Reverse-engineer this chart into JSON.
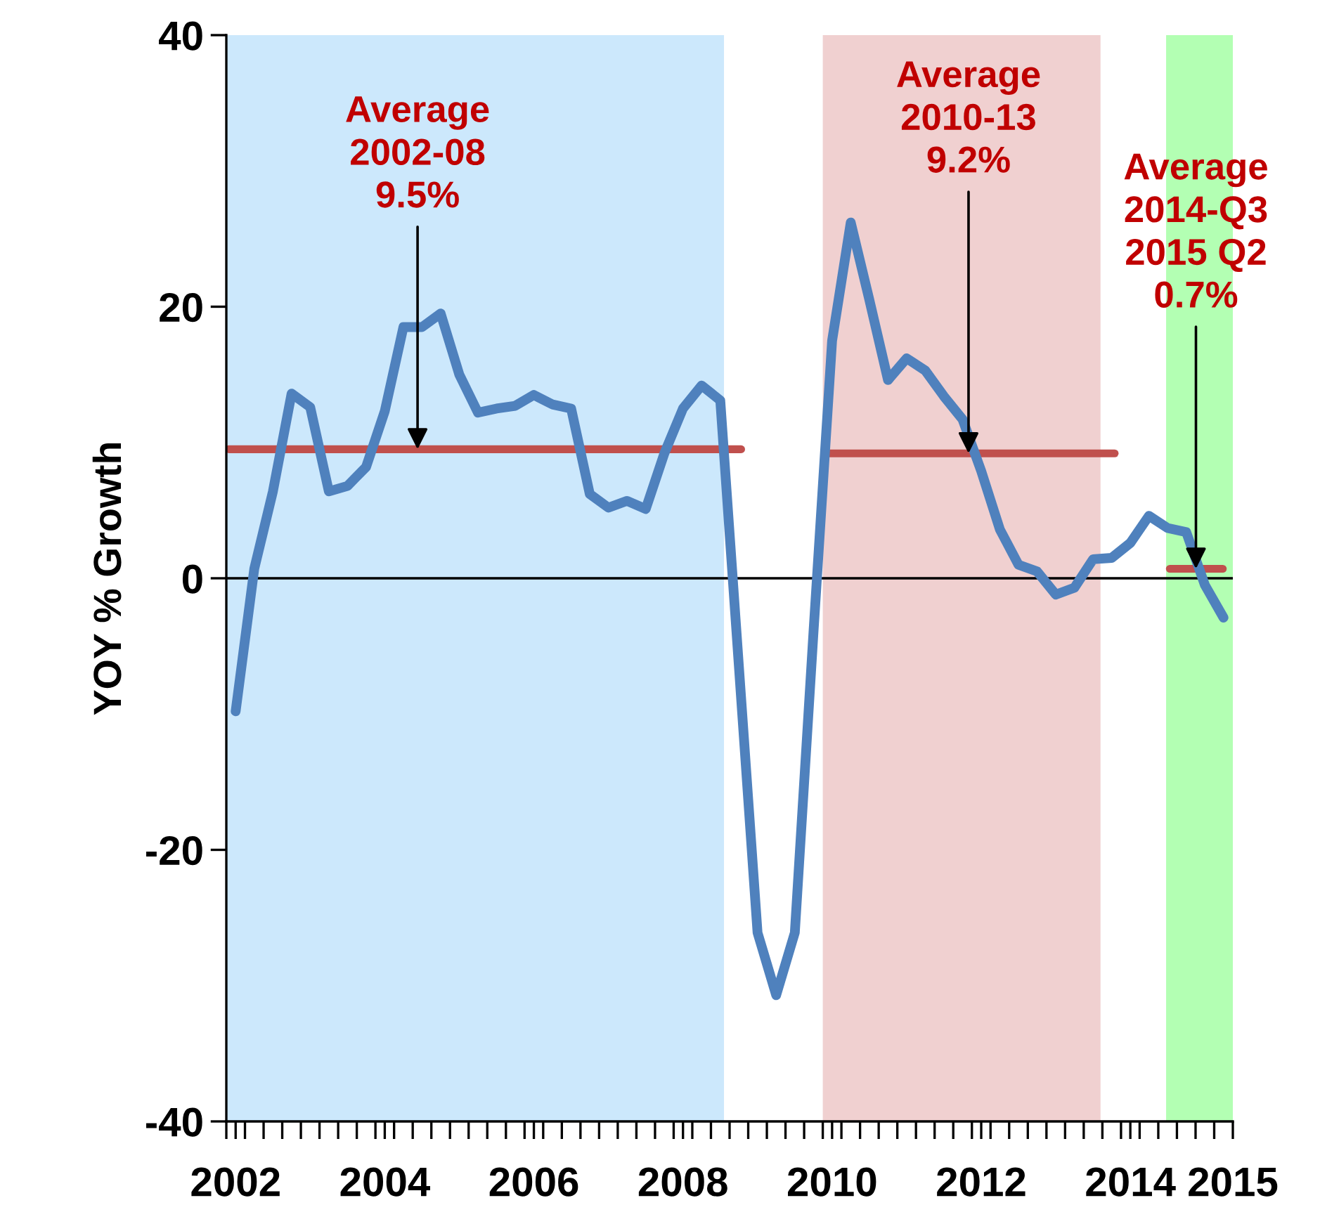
{
  "chart_data": {
    "type": "line",
    "ylabel": "YOY % Growth",
    "x": [
      2002,
      2002.25,
      2002.5,
      2002.75,
      2003,
      2003.25,
      2003.5,
      2003.75,
      2004,
      2004.25,
      2004.5,
      2004.75,
      2005,
      2005.25,
      2005.5,
      2005.75,
      2006,
      2006.25,
      2006.5,
      2006.75,
      2007,
      2007.25,
      2007.5,
      2007.75,
      2008,
      2008.25,
      2008.5,
      2008.75,
      2009,
      2009.25,
      2009.5,
      2009.75,
      2010,
      2010.25,
      2010.5,
      2010.75,
      2011,
      2011.25,
      2011.5,
      2011.75,
      2012,
      2012.25,
      2012.5,
      2012.75,
      2013,
      2013.25,
      2013.5,
      2013.75,
      2014,
      2014.25,
      2014.5,
      2014.75,
      2015,
      2015.25
    ],
    "series": [
      {
        "color": "#4f81bd",
        "values": [
          -9.8,
          0.7,
          6.4,
          13.6,
          12.6,
          6.4,
          6.8,
          8.2,
          12.3,
          18.5,
          18.5,
          19.5,
          15.0,
          12.2,
          12.5,
          12.7,
          13.5,
          12.8,
          12.5,
          6.2,
          5.2,
          5.7,
          5.1,
          9.2,
          12.5,
          14.2,
          13.1,
          -6.5,
          -26.1,
          -30.7,
          -26.1,
          -4,
          17.5,
          26.2,
          20.5,
          14.6,
          16.2,
          15.3,
          13.4,
          11.7,
          7.9,
          3.6,
          1.0,
          0.5,
          -1.2,
          -0.7,
          1.4,
          1.5,
          2.6,
          4.6,
          3.7,
          3.4,
          -0.5,
          -2.9
        ]
      },
      {
        "type": "line",
        "color": "#c0504d",
        "x": [
          2001.91,
          2008.78
        ],
        "values": [
          9.5,
          9.5
        ]
      },
      {
        "type": "line",
        "color": "#c0504d",
        "x": [
          2009.96,
          2013.79
        ],
        "values": [
          9.2,
          9.2
        ]
      },
      {
        "type": "line",
        "color": "#c0504d",
        "x": [
          2014.53,
          2015.24
        ],
        "values": [
          0.7,
          0.7
        ]
      }
    ],
    "xlim": [
      2001.875,
      2015.375
    ],
    "ylim": [
      -40,
      40
    ],
    "yticks": [
      -40,
      -20,
      0,
      20,
      40
    ],
    "xticks": [
      2002,
      2004,
      2006,
      2008,
      2010,
      2012,
      2014,
      {
        "value": 2015.375,
        "label": "2015"
      },
      {
        "value": 2001.875,
        "label": null
      },
      {
        "value": 2002.125,
        "label": null
      },
      {
        "value": 2002.375,
        "label": null
      },
      {
        "value": 2002.625,
        "label": null
      },
      {
        "value": 2002.875,
        "label": null
      },
      {
        "value": 2003.125,
        "label": null
      },
      {
        "value": 2003.375,
        "label": null
      },
      {
        "value": 2003.625,
        "label": null
      },
      {
        "value": 2003.875,
        "label": null
      },
      {
        "value": 2004.125,
        "label": null
      },
      {
        "value": 2004.375,
        "label": null
      },
      {
        "value": 2004.625,
        "label": null
      },
      {
        "value": 2004.875,
        "label": null
      },
      {
        "value": 2005.125,
        "label": null
      },
      {
        "value": 2005.375,
        "label": null
      },
      {
        "value": 2005.625,
        "label": null
      },
      {
        "value": 2005.875,
        "label": null
      },
      {
        "value": 2006.125,
        "label": null
      },
      {
        "value": 2006.375,
        "label": null
      },
      {
        "value": 2006.625,
        "label": null
      },
      {
        "value": 2006.875,
        "label": null
      },
      {
        "value": 2007.125,
        "label": null
      },
      {
        "value": 2007.375,
        "label": null
      },
      {
        "value": 2007.625,
        "label": null
      },
      {
        "value": 2007.875,
        "label": null
      },
      {
        "value": 2008.125,
        "label": null
      },
      {
        "value": 2008.375,
        "label": null
      },
      {
        "value": 2008.625,
        "label": null
      },
      {
        "value": 2008.875,
        "label": null
      },
      {
        "value": 2009.125,
        "label": null
      },
      {
        "value": 2009.375,
        "label": null
      },
      {
        "value": 2009.625,
        "label": null
      },
      {
        "value": 2009.875,
        "label": null
      },
      {
        "value": 2010.125,
        "label": null
      },
      {
        "value": 2010.375,
        "label": null
      },
      {
        "value": 2010.625,
        "label": null
      },
      {
        "value": 2010.875,
        "label": null
      },
      {
        "value": 2011.125,
        "label": null
      },
      {
        "value": 2011.375,
        "label": null
      },
      {
        "value": 2011.625,
        "label": null
      },
      {
        "value": 2011.875,
        "label": null
      },
      {
        "value": 2012.125,
        "label": null
      },
      {
        "value": 2012.375,
        "label": null
      },
      {
        "value": 2012.625,
        "label": null
      },
      {
        "value": 2012.875,
        "label": null
      },
      {
        "value": 2013.125,
        "label": null
      },
      {
        "value": 2013.375,
        "label": null
      },
      {
        "value": 2013.625,
        "label": null
      },
      {
        "value": 2013.875,
        "label": null
      },
      {
        "value": 2014.125,
        "label": null
      },
      {
        "value": 2014.375,
        "label": null
      },
      {
        "value": 2014.625,
        "label": null
      },
      {
        "value": 2014.875,
        "label": null
      },
      {
        "value": 2015.125,
        "label": null
      }
    ],
    "bands": [
      {
        "axis": "x",
        "from": 2001.875,
        "to": 2008.55,
        "color": "#cce8fc"
      },
      {
        "axis": "x",
        "from": 2009.875,
        "to": 2013.6,
        "color": "#f0d0d0"
      },
      {
        "axis": "x",
        "from": 2014.48,
        "to": 2015.375,
        "color": "#b3ffb3"
      }
    ],
    "ref_lines": [
      {
        "axis": "y",
        "value": 0,
        "color": "#000000"
      }
    ],
    "annotations": [
      {
        "text": "Average\n2002-08\n9.5%",
        "x": 2004.44,
        "y": 9.5
      },
      {
        "text": "Average\n2010-13\n9.2%",
        "x": 2011.83,
        "y": 9.2
      },
      {
        "text": "Average\n2014-Q3\n2015 Q2\n0.7%",
        "x": 2014.88,
        "y": 0.7
      }
    ],
    "grid": false,
    "legend": false,
    "marker": "none",
    "line_style": "solid"
  }
}
